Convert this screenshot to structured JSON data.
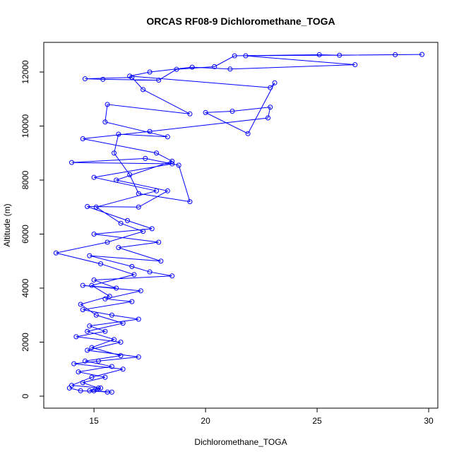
{
  "chart_data": {
    "type": "line",
    "title": "ORCAS RF08-9 Dichloromethane_TOGA",
    "x_label": "Dichloromethane_TOGA",
    "y_label": "Altitude (m)",
    "markers": true,
    "color": "#0000ff",
    "x": [
      15.6,
      14.8,
      15.2,
      14.5,
      15.5,
      14.3,
      15.8,
      14.6,
      16.2,
      14.9,
      15.9,
      14.7,
      16.3,
      15.1,
      14.4,
      15.7,
      14.9,
      16.8,
      15.3,
      13.3,
      15.6,
      17.2,
      16.2,
      15.1,
      17.8,
      15.0,
      18.5,
      14.0,
      17.3,
      18.8,
      19.3,
      17.0,
      16.6,
      15.9,
      16.1,
      18.3,
      15.5,
      15.6,
      19.3,
      17.2,
      16.7,
      14.6,
      15.4,
      17.9,
      18.7,
      20.4,
      21.3,
      25.1,
      26.0,
      28.5,
      29.7,
      21.8,
      26.7,
      21.1,
      19.4,
      17.5,
      16.6,
      22.9,
      23.1,
      21.9,
      20.0,
      21.2,
      22.9,
      22.8,
      17.5,
      14.5,
      17.8,
      18.5,
      16.0,
      18.3,
      17.0,
      14.7,
      16.5,
      17.6,
      15.0,
      17.9,
      16.1,
      18.0,
      14.8,
      16.7,
      17.5,
      18.5,
      15.0,
      16.0,
      14.5,
      17.1,
      15.5,
      16.7,
      14.5,
      15.8,
      17.0,
      14.8,
      15.5,
      14.2,
      16.2,
      14.7,
      17.0,
      15.2,
      14.1,
      16.3,
      14.9,
      14.0,
      15.3,
      15.0,
      15.8,
      14.4,
      13.9
    ],
    "values": [
      150,
      200,
      300,
      500,
      700,
      900,
      1100,
      1300,
      1500,
      1800,
      2100,
      2400,
      2700,
      3000,
      3400,
      3700,
      4100,
      4500,
      4900,
      5300,
      5700,
      6100,
      6400,
      7000,
      7600,
      8100,
      8600,
      8650,
      8800,
      8550,
      7200,
      7500,
      8200,
      9000,
      9700,
      9600,
      10150,
      10800,
      10450,
      11350,
      11800,
      11750,
      11730,
      11700,
      12100,
      12200,
      12600,
      12640,
      12620,
      12640,
      12650,
      12600,
      12270,
      12110,
      12180,
      12000,
      11850,
      11420,
      11600,
      9720,
      10500,
      10550,
      10700,
      10300,
      9800,
      9530,
      9000,
      8700,
      8000,
      7600,
      7000,
      7020,
      6500,
      6200,
      6000,
      5700,
      5500,
      5000,
      5200,
      4800,
      4600,
      4450,
      4300,
      4000,
      4100,
      3900,
      3600,
      3500,
      3200,
      3000,
      2850,
      2600,
      2400,
      2200,
      2000,
      1700,
      1450,
      1300,
      1200,
      1000,
      700,
      400,
      300,
      200,
      150,
      200,
      300
    ],
    "xlim": [
      12.75,
      30.41
    ],
    "ylim": [
      -444,
      13098
    ],
    "xticks": [
      15,
      20,
      25,
      30
    ],
    "yticks": [
      0,
      2000,
      4000,
      6000,
      8000,
      10000,
      12000
    ]
  }
}
